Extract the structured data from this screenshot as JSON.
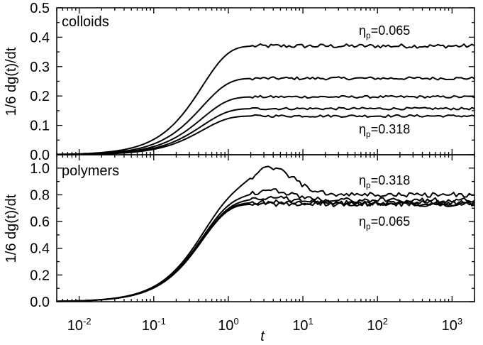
{
  "chart_data": [
    {
      "type": "line",
      "panel": "top",
      "label": "colloids",
      "xscale": "log",
      "xlim": [
        0.005,
        2000
      ],
      "ylim": [
        0,
        0.5
      ],
      "yticks": [
        "0.0",
        "0.1",
        "0.2",
        "0.3",
        "0.4",
        "0.5"
      ],
      "ylabel": "1/6  dg(t)/dt",
      "annotations": [
        {
          "sym": "η",
          "sub": "p",
          "text": "=0.065"
        },
        {
          "sym": "η",
          "sub": "p",
          "text": "=0.318"
        }
      ],
      "series": [
        {
          "name": "η_p=0.065",
          "plateau": 0.37,
          "peak": 0.0,
          "noise": 0.007
        },
        {
          "name": "series-2",
          "plateau": 0.26,
          "peak": 0.0,
          "noise": 0.005
        },
        {
          "name": "series-3",
          "plateau": 0.197,
          "peak": 0.0,
          "noise": 0.004
        },
        {
          "name": "series-4",
          "plateau": 0.157,
          "peak": 0.0,
          "noise": 0.004
        },
        {
          "name": "η_p=0.318",
          "plateau": 0.132,
          "peak": 0.0,
          "noise": 0.004
        }
      ]
    },
    {
      "type": "line",
      "panel": "bottom",
      "label": "polymers",
      "xscale": "log",
      "xlim": [
        0.005,
        2000
      ],
      "ylim": [
        0,
        1.1
      ],
      "yticks": [
        "0.0",
        "0.2",
        "0.4",
        "0.6",
        "0.8",
        "1.0"
      ],
      "xticks": [
        {
          "base": "10",
          "exp": "-2"
        },
        {
          "base": "10",
          "exp": "-1"
        },
        {
          "base": "10",
          "exp": "0"
        },
        {
          "base": "10",
          "exp": "1"
        },
        {
          "base": "10",
          "exp": "2"
        },
        {
          "base": "10",
          "exp": "3"
        }
      ],
      "xlabel": "t",
      "ylabel": "1/6  dg(t)/dt",
      "annotations": [
        {
          "sym": "η",
          "sub": "p",
          "text": "=0.318"
        },
        {
          "sym": "η",
          "sub": "p",
          "text": "=0.065"
        }
      ],
      "series": [
        {
          "name": "η_p=0.318",
          "plateau": 0.8,
          "peak": 0.2,
          "noise": 0.018
        },
        {
          "name": "series-2",
          "plateau": 0.76,
          "peak": 0.07,
          "noise": 0.018
        },
        {
          "name": "series-3",
          "plateau": 0.74,
          "peak": 0.04,
          "noise": 0.018
        },
        {
          "name": "series-4",
          "plateau": 0.735,
          "peak": 0.01,
          "noise": 0.018
        },
        {
          "name": "η_p=0.065",
          "plateau": 0.73,
          "peak": 0.0,
          "noise": 0.018
        }
      ]
    }
  ]
}
